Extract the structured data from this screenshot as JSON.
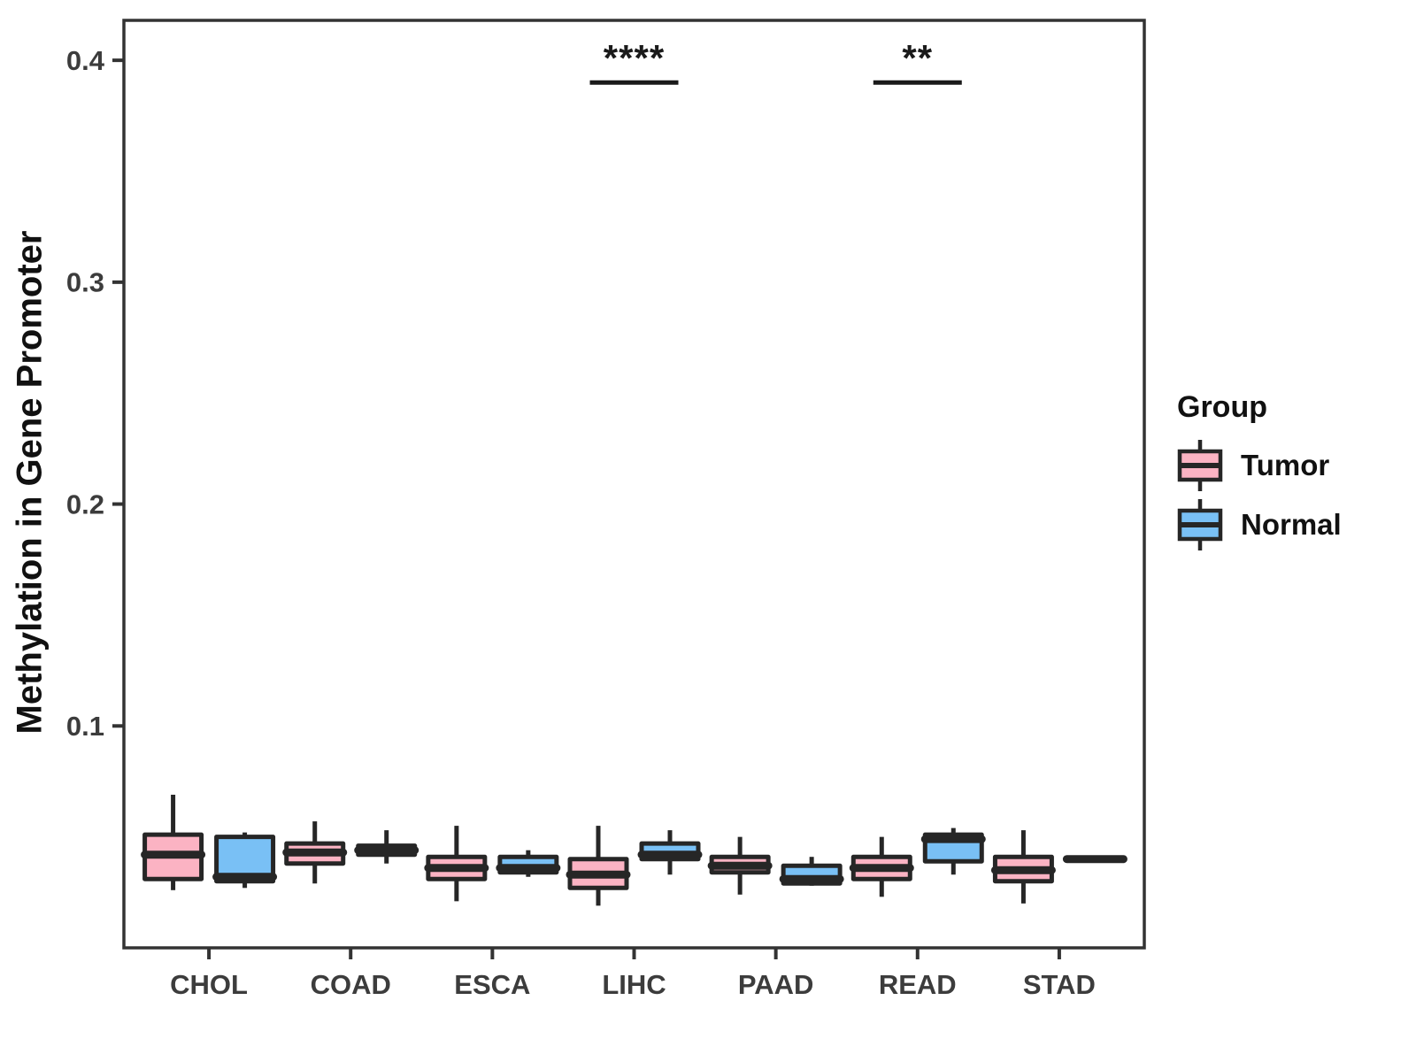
{
  "figure": {
    "background": "#FFFFFF",
    "panel_border_color": "#333333",
    "axis_text_color": "#3C3C3C",
    "box_stroke_color": "#262626",
    "annotation_color": "#1A1A1A"
  },
  "chart_data": {
    "type": "boxplot",
    "title": "",
    "xlabel": "",
    "ylabel": "Methylation in Gene Promoter",
    "categories": [
      "CHOL",
      "COAD",
      "ESCA",
      "LIHC",
      "PAAD",
      "READ",
      "STAD"
    ],
    "ylim": [
      0,
      0.418
    ],
    "yticks": [
      "0.1",
      "0.2",
      "0.3",
      "0.4"
    ],
    "grid": false,
    "legend": {
      "title": "Group",
      "position": "right"
    },
    "groups": [
      {
        "name": "Tumor",
        "color": "#FBB3C3"
      },
      {
        "name": "Normal",
        "color": "#79C0F5"
      }
    ],
    "series": [
      {
        "name": "Tumor",
        "boxes": [
          {
            "category": "CHOL",
            "low": 0.026,
            "q1": 0.031,
            "median": 0.042,
            "q3": 0.051,
            "high": 0.069
          },
          {
            "category": "COAD",
            "low": 0.029,
            "q1": 0.038,
            "median": 0.043,
            "q3": 0.047,
            "high": 0.057
          },
          {
            "category": "ESCA",
            "low": 0.021,
            "q1": 0.031,
            "median": 0.036,
            "q3": 0.041,
            "high": 0.055
          },
          {
            "category": "LIHC",
            "low": 0.019,
            "q1": 0.027,
            "median": 0.033,
            "q3": 0.04,
            "high": 0.055
          },
          {
            "category": "PAAD",
            "low": 0.024,
            "q1": 0.034,
            "median": 0.037,
            "q3": 0.041,
            "high": 0.05
          },
          {
            "category": "READ",
            "low": 0.023,
            "q1": 0.031,
            "median": 0.036,
            "q3": 0.041,
            "high": 0.05
          },
          {
            "category": "STAD",
            "low": 0.02,
            "q1": 0.03,
            "median": 0.035,
            "q3": 0.041,
            "high": 0.053
          }
        ]
      },
      {
        "name": "Normal",
        "boxes": [
          {
            "category": "CHOL",
            "low": 0.027,
            "q1": 0.03,
            "median": 0.032,
            "q3": 0.05,
            "high": 0.052
          },
          {
            "category": "COAD",
            "low": 0.038,
            "q1": 0.042,
            "median": 0.044,
            "q3": 0.046,
            "high": 0.053
          },
          {
            "category": "ESCA",
            "low": 0.032,
            "q1": 0.034,
            "median": 0.036,
            "q3": 0.041,
            "high": 0.044
          },
          {
            "category": "LIHC",
            "low": 0.033,
            "q1": 0.04,
            "median": 0.042,
            "q3": 0.047,
            "high": 0.053
          },
          {
            "category": "PAAD",
            "low": 0.028,
            "q1": 0.029,
            "median": 0.031,
            "q3": 0.037,
            "high": 0.041
          },
          {
            "category": "READ",
            "low": 0.033,
            "q1": 0.039,
            "median": 0.049,
            "q3": 0.051,
            "high": 0.054
          },
          {
            "category": "STAD",
            "low": 0.04,
            "q1": 0.04,
            "median": 0.04,
            "q3": 0.04,
            "high": 0.04
          }
        ]
      }
    ],
    "annotations": [
      {
        "category": "LIHC",
        "label": "****",
        "y": 0.39
      },
      {
        "category": "READ",
        "label": "**",
        "y": 0.39
      }
    ]
  }
}
